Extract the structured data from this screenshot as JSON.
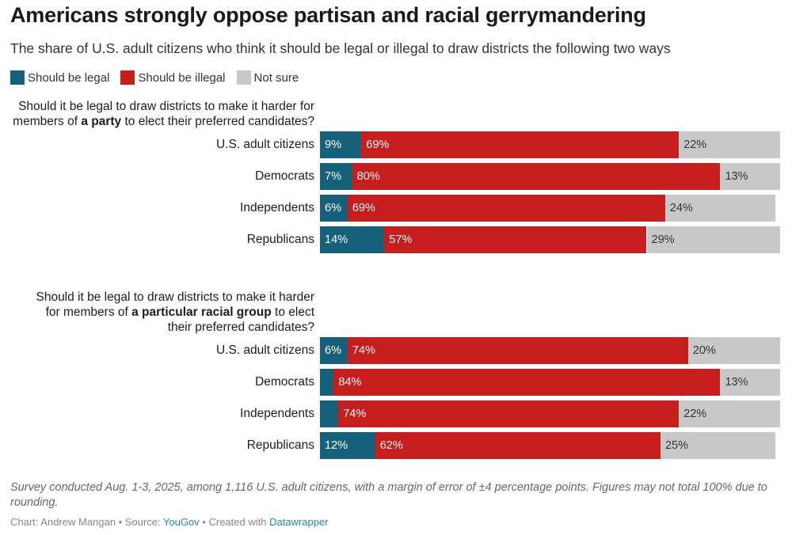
{
  "colors": {
    "legal": "#15607a",
    "illegal": "#c71e1d",
    "not_sure": "#c8c8c8"
  },
  "header": {
    "title": "Americans strongly oppose partisan and racial gerrymandering",
    "subtitle": "The share of U.S. adult citizens who think it should be legal or illegal to draw districts the following two ways"
  },
  "legend": [
    {
      "label": "Should be legal"
    },
    {
      "label": "Should be illegal"
    },
    {
      "label": "Not sure"
    }
  ],
  "chart_data": {
    "type": "bar",
    "orientation": "horizontal",
    "stacked": true,
    "title": "Americans strongly oppose partisan and racial gerrymandering",
    "series_names": [
      "Should be legal",
      "Should be illegal",
      "Not sure"
    ],
    "groups": [
      {
        "question_pre": "Should it be legal to draw districts to make it harder for members of ",
        "question_bold": "a party",
        "question_post": " to elect their preferred candidates?",
        "rows": [
          {
            "category": "U.S. adult citizens",
            "legal": 9,
            "illegal": 69,
            "not_sure": 22,
            "legal_label": "9%",
            "illegal_label": "69%",
            "not_sure_label": "22%"
          },
          {
            "category": "Democrats",
            "legal": 7,
            "illegal": 80,
            "not_sure": 13,
            "legal_label": "7%",
            "illegal_label": "80%",
            "not_sure_label": "13%"
          },
          {
            "category": "Independents",
            "legal": 6,
            "illegal": 69,
            "not_sure": 24,
            "legal_label": "6%",
            "illegal_label": "69%",
            "not_sure_label": "24%"
          },
          {
            "category": "Republicans",
            "legal": 14,
            "illegal": 57,
            "not_sure": 29,
            "legal_label": "14%",
            "illegal_label": "57%",
            "not_sure_label": "29%"
          }
        ]
      },
      {
        "question_pre": "Should it be legal to draw districts to make it harder for members of ",
        "question_bold": "a particular racial group",
        "question_post": " to elect their preferred candidates?",
        "rows": [
          {
            "category": "U.S. adult citizens",
            "legal": 6,
            "illegal": 74,
            "not_sure": 20,
            "legal_label": "6%",
            "illegal_label": "74%",
            "not_sure_label": "20%"
          },
          {
            "category": "Democrats",
            "legal": 3,
            "illegal": 84,
            "not_sure": 13,
            "legal_label": "",
            "illegal_label": "84%",
            "not_sure_label": "13%"
          },
          {
            "category": "Independents",
            "legal": 4,
            "illegal": 74,
            "not_sure": 22,
            "legal_label": "",
            "illegal_label": "74%",
            "not_sure_label": "22%"
          },
          {
            "category": "Republicans",
            "legal": 12,
            "illegal": 62,
            "not_sure": 25,
            "legal_label": "12%",
            "illegal_label": "62%",
            "not_sure_label": "25%"
          }
        ]
      }
    ],
    "xlim": [
      0,
      100
    ]
  },
  "notes": "Survey conducted Aug. 1-3, 2025, among 1,116 U.S. adult citizens, with a margin of error of ±4 percentage points. Figures may not total 100% due to rounding.",
  "byline": {
    "prefix": "Chart: Andrew Mangan • Source: ",
    "source": "YouGov",
    "middle": " • Created with ",
    "tool": "Datawrapper"
  }
}
